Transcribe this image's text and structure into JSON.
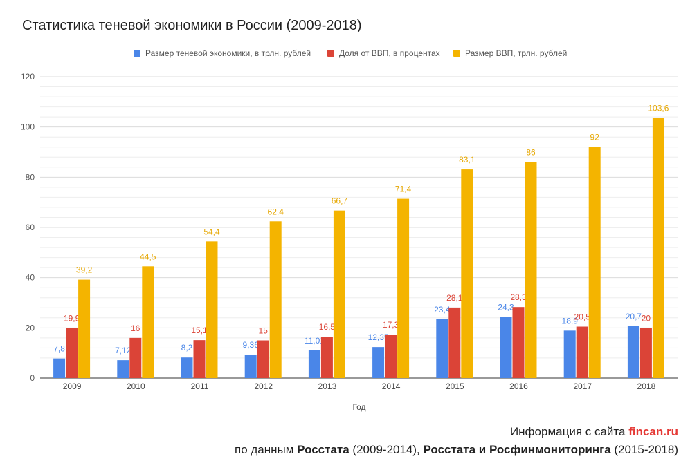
{
  "title": "Статистика теневой экономики в России (2009-2018)",
  "colors": {
    "shadow": "#4a86e8",
    "share": "#db4437",
    "gdp": "#f4b400",
    "grid": "#dcdcdc",
    "axis": "#333333"
  },
  "chart_data": {
    "type": "bar",
    "xlabel": "Год",
    "ylabel": "",
    "ylim": [
      0,
      120
    ],
    "yticks": [
      "0",
      "20",
      "40",
      "60",
      "80",
      "100",
      "120"
    ],
    "grid": true,
    "legend_position": "top",
    "categories": [
      "2009",
      "2010",
      "2011",
      "2012",
      "2013",
      "2014",
      "2015",
      "2016",
      "2017",
      "2018"
    ],
    "series": [
      {
        "name": "Размер теневой экономики, в трлн. рублей",
        "values": [
          7.8,
          7.12,
          8.2,
          9.36,
          11.01,
          12.35,
          23.4,
          24.3,
          18.9,
          20.7
        ],
        "labels": [
          "7,8",
          "7,12",
          "8,2",
          "9,36",
          "11,01",
          "12,35",
          "23,4",
          "24,3",
          "18,9",
          "20,7"
        ]
      },
      {
        "name": "Доля от ВВП, в процентах",
        "values": [
          19.9,
          16,
          15.1,
          15,
          16.5,
          17.3,
          28.1,
          28.3,
          20.5,
          20
        ],
        "labels": [
          "19,9",
          "16",
          "15,1",
          "15",
          "16,5",
          "17,3",
          "28,1",
          "28,3",
          "20,5",
          "20"
        ]
      },
      {
        "name": "Размер ВВП, трлн. рублей",
        "values": [
          39.2,
          44.5,
          54.4,
          62.4,
          66.7,
          71.4,
          83.1,
          86,
          92,
          103.6
        ],
        "labels": [
          "39,2",
          "44,5",
          "54,4",
          "62,4",
          "66,7",
          "71,4",
          "83,1",
          "86",
          "92",
          "103,6"
        ]
      }
    ]
  },
  "source": {
    "line1_prefix": "Информация с сайта ",
    "line1_brand": "fincan.ru",
    "line2_part1": "по данным ",
    "line2_bold1": "Росстата",
    "line2_part2": " (2009-2014), ",
    "line2_bold2": "Росстата и Росфинмониторинга",
    "line2_part3": " (2015-2018)"
  }
}
